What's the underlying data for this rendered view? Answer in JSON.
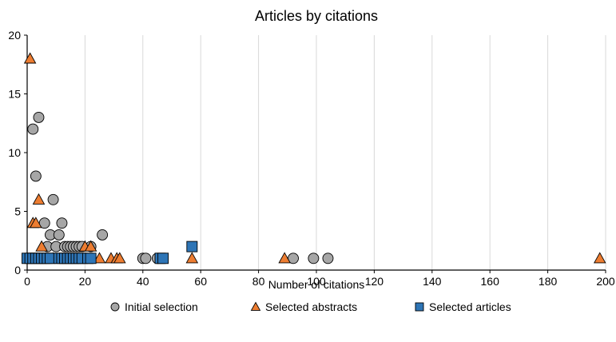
{
  "chart_data": {
    "type": "scatter",
    "title": "Articles by citations",
    "xlabel": "Number of citations",
    "ylabel": "",
    "xlim": [
      0,
      200
    ],
    "ylim": [
      0,
      20
    ],
    "x_ticks": [
      0,
      20,
      40,
      60,
      80,
      100,
      120,
      140,
      160,
      180,
      200
    ],
    "y_ticks": [
      0,
      5,
      10,
      15,
      20
    ],
    "x_tick_labels": [
      "0",
      "20",
      "40",
      "60",
      "80",
      "100",
      "120",
      "140",
      "160",
      "180",
      "200"
    ],
    "y_tick_labels": [
      "0",
      "5",
      "10",
      "15",
      "20"
    ],
    "grid": "vertical",
    "legend_position": "bottom",
    "series": [
      {
        "name": "Initial selection",
        "marker": "circle",
        "color": "#a6a6a6",
        "points": [
          [
            2,
            12
          ],
          [
            3,
            8
          ],
          [
            4,
            13
          ],
          [
            6,
            4
          ],
          [
            7,
            2
          ],
          [
            8,
            3
          ],
          [
            9,
            6
          ],
          [
            10,
            2
          ],
          [
            11,
            3
          ],
          [
            12,
            4
          ],
          [
            13,
            2
          ],
          [
            14,
            2
          ],
          [
            15,
            2
          ],
          [
            16,
            2
          ],
          [
            17,
            2
          ],
          [
            18,
            2
          ],
          [
            19,
            2
          ],
          [
            22,
            2
          ],
          [
            26,
            3
          ],
          [
            40,
            1
          ],
          [
            41,
            1
          ],
          [
            45,
            1
          ],
          [
            92,
            1
          ],
          [
            99,
            1
          ],
          [
            104,
            1
          ]
        ]
      },
      {
        "name": "Selected abstracts",
        "marker": "triangle",
        "color": "#ed7d31",
        "points": [
          [
            1,
            18
          ],
          [
            2,
            4
          ],
          [
            3,
            4
          ],
          [
            4,
            6
          ],
          [
            5,
            2
          ],
          [
            9,
            1
          ],
          [
            20,
            2
          ],
          [
            22,
            2
          ],
          [
            25,
            1
          ],
          [
            29,
            1
          ],
          [
            31,
            1
          ],
          [
            32,
            1
          ],
          [
            57,
            1
          ],
          [
            89,
            1
          ],
          [
            198,
            1
          ]
        ]
      },
      {
        "name": "Selected articles",
        "marker": "square",
        "color": "#2e75b6",
        "points": [
          [
            0,
            1
          ],
          [
            1,
            1
          ],
          [
            2,
            1
          ],
          [
            3,
            1
          ],
          [
            4,
            1
          ],
          [
            5,
            1
          ],
          [
            6,
            1
          ],
          [
            7,
            1
          ],
          [
            8,
            1
          ],
          [
            11,
            1
          ],
          [
            12,
            1
          ],
          [
            13,
            1
          ],
          [
            14,
            1
          ],
          [
            15,
            1
          ],
          [
            16,
            1
          ],
          [
            17,
            1
          ],
          [
            18,
            1
          ],
          [
            19,
            1
          ],
          [
            21,
            1
          ],
          [
            22,
            1
          ],
          [
            46,
            1
          ],
          [
            47,
            1
          ],
          [
            57,
            2
          ]
        ]
      }
    ]
  }
}
